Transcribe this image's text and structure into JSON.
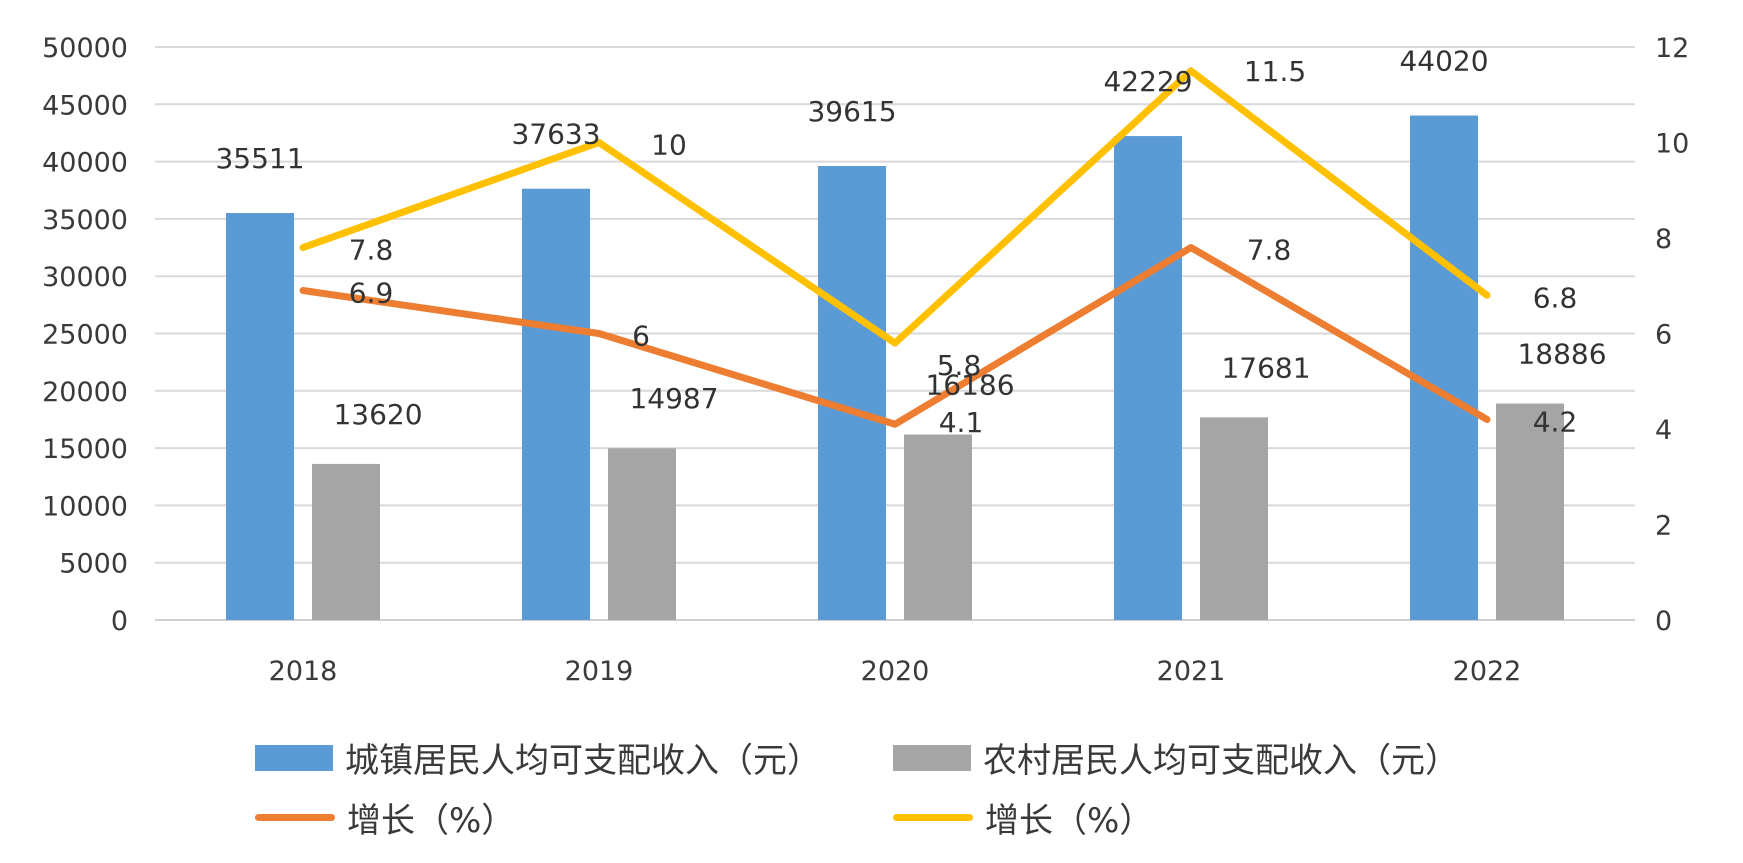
{
  "chart_data": {
    "type": "bar",
    "categories": [
      "2018",
      "2019",
      "2020",
      "2021",
      "2022"
    ],
    "series": [
      {
        "name": "城镇居民人均可支配收入（元）",
        "type": "bar",
        "axis": "left",
        "color": "#5B9BD5",
        "values": [
          35511,
          37633,
          39615,
          42229,
          44020
        ]
      },
      {
        "name": "农村居民人均可支配收入（元）",
        "type": "bar",
        "axis": "left",
        "color": "#A5A5A5",
        "values": [
          13620,
          14987,
          16186,
          17681,
          18886
        ]
      },
      {
        "name": "增长（%）",
        "type": "line",
        "axis": "right",
        "color": "#ED7D31",
        "values": [
          6.9,
          6,
          4.1,
          7.8,
          4.2
        ]
      },
      {
        "name": "增长（%）",
        "type": "line",
        "axis": "right",
        "color": "#FFC000",
        "values": [
          7.8,
          10,
          5.8,
          11.5,
          6.8
        ]
      }
    ],
    "y_left": {
      "range": [
        0,
        50000
      ],
      "ticks": [
        "0",
        "5000",
        "10000",
        "15000",
        "20000",
        "25000",
        "30000",
        "35000",
        "40000",
        "45000",
        "50000"
      ]
    },
    "y_right": {
      "range": [
        0,
        12
      ],
      "ticks": [
        "0",
        "2",
        "4",
        "6",
        "8",
        "10",
        "12"
      ]
    },
    "grid": true,
    "legend_position": "bottom"
  }
}
